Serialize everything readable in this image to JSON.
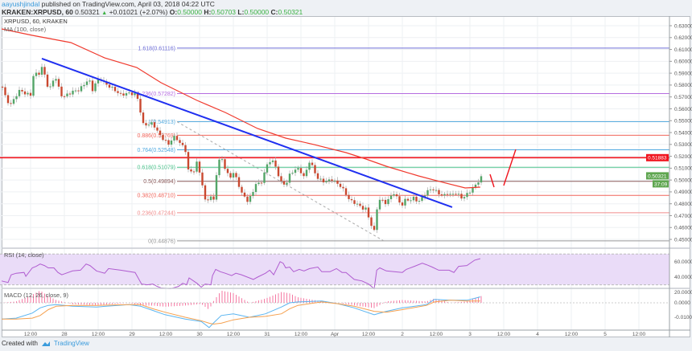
{
  "header": {
    "author": "aayushjindal",
    "published": "published on TradingView.com, April 03, 2018 04:22 UTC",
    "symbol": "KRAKEN:XRPUSD, 60",
    "last": "0.50321",
    "change": "+0.01021 (+2.07%)",
    "open_label": "O:",
    "open": "0.50000",
    "high_label": "H:",
    "high": "0.50703",
    "low_label": "L:",
    "low": "0.50000",
    "close_label": "C:",
    "close": "0.50321"
  },
  "legend": {
    "series": "XRPUSD, 60, KRAKEN",
    "ma": "MA (100, close)",
    "rsi": "RSI (14, close)",
    "macd": "MACD (12, 26, close, 9)"
  },
  "footer": {
    "created_with": "Created with",
    "brand": "TradingView"
  },
  "colors": {
    "up": "#53a568",
    "down": "#c9482f",
    "ma": "#f03a2e",
    "trend": "#1f2ff0",
    "resistance": "#f0141e",
    "rsi": "#b05cd0",
    "rsi_band": "#eadcf8",
    "macd": "#5ab4f0",
    "signal": "#f5a04e",
    "hist": "#f47aa3",
    "last_tag": "#5fa650"
  },
  "chart_data": {
    "type": "candlestick",
    "time_unit": "hours since Mar 28 00:00",
    "price_axis": {
      "ticks": [
        "0.63000",
        "0.62000",
        "0.61000",
        "0.60000",
        "0.59000",
        "0.58000",
        "0.57000",
        "0.56000",
        "0.55000",
        "0.54000",
        "0.53000",
        "0.52000",
        "0.51000",
        "0.50000",
        "0.49000",
        "0.48000",
        "0.47000",
        "0.46000",
        "0.45000"
      ],
      "range": [
        0.445,
        0.64
      ]
    },
    "time_axis": [
      {
        "t": -12,
        "label": "12:00"
      },
      {
        "t": 0,
        "label": "28"
      },
      {
        "t": 12,
        "label": "12:00"
      },
      {
        "t": 24,
        "label": "29"
      },
      {
        "t": 36,
        "label": "12:00"
      },
      {
        "t": 48,
        "label": "30"
      },
      {
        "t": 60,
        "label": "12:00"
      },
      {
        "t": 72,
        "label": "31"
      },
      {
        "t": 84,
        "label": "12:00"
      },
      {
        "t": 96,
        "label": "Apr"
      },
      {
        "t": 108,
        "label": "12:00"
      },
      {
        "t": 120,
        "label": "2"
      },
      {
        "t": 132,
        "label": "12:00"
      },
      {
        "t": 144,
        "label": "3"
      },
      {
        "t": 156,
        "label": "12:00"
      },
      {
        "t": 168,
        "label": "4"
      },
      {
        "t": 180,
        "label": "12:00"
      },
      {
        "t": 192,
        "label": "5"
      },
      {
        "t": 204,
        "label": "12:00"
      }
    ],
    "close_path": [
      [
        -22,
        0.5786
      ],
      [
        -20.6,
        0.5671
      ],
      [
        -18.9,
        0.5637
      ],
      [
        -17,
        0.5718
      ],
      [
        -15.7,
        0.5759
      ],
      [
        -13.7,
        0.5725
      ],
      [
        -12,
        0.5718
      ],
      [
        -10.9,
        0.5894
      ],
      [
        -9.1,
        0.5894
      ],
      [
        -7.7,
        0.5962
      ],
      [
        -6.3,
        0.5806
      ],
      [
        -5.1,
        0.5772
      ],
      [
        -4,
        0.584
      ],
      [
        -2.9,
        0.586
      ],
      [
        -1.4,
        0.5718
      ],
      [
        0,
        0.5705
      ],
      [
        1.4,
        0.5725
      ],
      [
        2.9,
        0.5745
      ],
      [
        5.1,
        0.5759
      ],
      [
        6.6,
        0.5793
      ],
      [
        8.6,
        0.5853
      ],
      [
        10,
        0.5759
      ],
      [
        11.4,
        0.5833
      ],
      [
        12.9,
        0.5853
      ],
      [
        14.3,
        0.5813
      ],
      [
        17.1,
        0.5772
      ],
      [
        20,
        0.5718
      ],
      [
        22.9,
        0.5732
      ],
      [
        25.7,
        0.5718
      ],
      [
        28,
        0.5468
      ],
      [
        30,
        0.5468
      ],
      [
        31.4,
        0.5481
      ],
      [
        32.9,
        0.5414
      ],
      [
        34.3,
        0.5366
      ],
      [
        37.1,
        0.5299
      ],
      [
        38.6,
        0.5366
      ],
      [
        40,
        0.5346
      ],
      [
        41.4,
        0.5299
      ],
      [
        42.9,
        0.5265
      ],
      [
        44,
        0.5082
      ],
      [
        45.7,
        0.5062
      ],
      [
        47.1,
        0.515
      ],
      [
        48.6,
        0.5014
      ],
      [
        50,
        0.4825
      ],
      [
        52,
        0.4859
      ],
      [
        53.1,
        0.4825
      ],
      [
        54.3,
        0.5129
      ],
      [
        55.7,
        0.5197
      ],
      [
        57.1,
        0.5096
      ],
      [
        58.6,
        0.5014
      ],
      [
        60,
        0.5062
      ],
      [
        61.4,
        0.4994
      ],
      [
        62.9,
        0.4893
      ],
      [
        64.9,
        0.4825
      ],
      [
        66.6,
        0.4872
      ],
      [
        68,
        0.4974
      ],
      [
        69.7,
        0.496
      ],
      [
        71.4,
        0.5096
      ],
      [
        72.9,
        0.5163
      ],
      [
        74.3,
        0.5157
      ],
      [
        75.7,
        0.5062
      ],
      [
        77.1,
        0.4974
      ],
      [
        78.6,
        0.496
      ],
      [
        80,
        0.5042
      ],
      [
        81.4,
        0.5082
      ],
      [
        83.4,
        0.5096
      ],
      [
        85.1,
        0.5021
      ],
      [
        87.1,
        0.5163
      ],
      [
        88.6,
        0.5082
      ],
      [
        90,
        0.5014
      ],
      [
        91.4,
        0.4994
      ],
      [
        92.9,
        0.4987
      ],
      [
        94.9,
        0.5008
      ],
      [
        96.6,
        0.4974
      ],
      [
        97.7,
        0.496
      ],
      [
        99.4,
        0.4906
      ],
      [
        101.4,
        0.4825
      ],
      [
        102.9,
        0.4812
      ],
      [
        104.3,
        0.4791
      ],
      [
        105.7,
        0.4764
      ],
      [
        107.1,
        0.4757
      ],
      [
        108.6,
        0.4642
      ],
      [
        110,
        0.4568
      ],
      [
        111.4,
        0.4839
      ],
      [
        112.9,
        0.4825
      ],
      [
        114.3,
        0.4805
      ],
      [
        115.7,
        0.4859
      ],
      [
        117.1,
        0.4893
      ],
      [
        118.6,
        0.4825
      ],
      [
        120,
        0.4791
      ],
      [
        121.4,
        0.4845
      ],
      [
        122.9,
        0.4825
      ],
      [
        124.3,
        0.4859
      ],
      [
        125.7,
        0.4805
      ],
      [
        127.1,
        0.4859
      ],
      [
        128.6,
        0.4893
      ],
      [
        130,
        0.4927
      ],
      [
        131.4,
        0.4913
      ],
      [
        132.9,
        0.4893
      ],
      [
        134.3,
        0.4859
      ],
      [
        135.7,
        0.4893
      ],
      [
        137.1,
        0.4872
      ],
      [
        138.6,
        0.4893
      ],
      [
        140,
        0.4872
      ],
      [
        141.4,
        0.4845
      ],
      [
        142.9,
        0.4879
      ],
      [
        144.3,
        0.4913
      ],
      [
        145.7,
        0.4947
      ],
      [
        147.1,
        0.4994
      ],
      [
        148,
        0.50321
      ]
    ],
    "ma100": [
      [
        -22.3,
        0.6273
      ],
      [
        -11.4,
        0.6219
      ],
      [
        2.3,
        0.6158
      ],
      [
        14.3,
        0.6029
      ],
      [
        25.7,
        0.5948
      ],
      [
        34.3,
        0.582
      ],
      [
        47.1,
        0.5671
      ],
      [
        57.1,
        0.5569
      ],
      [
        68.6,
        0.5434
      ],
      [
        78.6,
        0.5353
      ],
      [
        88.6,
        0.5299
      ],
      [
        100,
        0.5231
      ],
      [
        107.1,
        0.5177
      ],
      [
        114.3,
        0.5116
      ],
      [
        125.7,
        0.5035
      ],
      [
        134.3,
        0.4981
      ],
      [
        142.3,
        0.4933
      ],
      [
        147.7,
        0.494
      ]
    ],
    "trendline": [
      [
        -8,
        0.6023
      ],
      [
        137.7,
        0.4771
      ]
    ],
    "resistance": {
      "price": 0.51883,
      "label": "0.51883"
    },
    "last_price_tag": {
      "label": "0.50321",
      "countdown": "37:09"
    },
    "fib": {
      "start": 40,
      "dashed_from": [
        40,
        0.54913
      ],
      "dashed_to": [
        113.4,
        0.44876
      ],
      "levels": [
        {
          "label": "1.618(0.61116)",
          "price": 0.61116,
          "color": "#6f6fd8"
        },
        {
          "label": "1.236(0.57282)",
          "price": 0.57282,
          "color": "#b56ce0"
        },
        {
          "label": "1(0.54913)",
          "price": 0.54913,
          "color": "#5aaee0"
        },
        {
          "label": "0.886(0.53769)",
          "price": 0.53769,
          "color": "#f0645a"
        },
        {
          "label": "0.764(0.52548)",
          "price": 0.52548,
          "color": "#4fa8e0"
        },
        {
          "label": "0.618(0.51079)",
          "price": 0.51079,
          "color": "#4cc48c"
        },
        {
          "label": "0.5(0.49894)",
          "price": 0.49894,
          "color": "#8a5a5a"
        },
        {
          "label": "0.382(0.48710)",
          "price": 0.4871,
          "color": "#f0645a"
        },
        {
          "label": "0.236(0.47244)",
          "price": 0.47244,
          "color": "#f08c8c"
        },
        {
          "label": "0(0.44876)",
          "price": 0.44876,
          "color": "#999999"
        }
      ]
    },
    "rsi": {
      "axis": [
        "60.0000",
        "40.0000",
        "20.0000"
      ],
      "band": [
        30,
        70
      ],
      "values": [
        [
          -22.3,
          35
        ],
        [
          -20,
          33
        ],
        [
          -18.9,
          43
        ],
        [
          -17.1,
          45
        ],
        [
          -14.3,
          46
        ],
        [
          -13.7,
          41
        ],
        [
          -11.4,
          52
        ],
        [
          -10,
          54
        ],
        [
          -8.6,
          57
        ],
        [
          -7.1,
          55
        ],
        [
          -5.7,
          52
        ],
        [
          -3.7,
          52
        ],
        [
          -2.3,
          46
        ],
        [
          -0.9,
          43
        ],
        [
          0.6,
          45
        ],
        [
          2.9,
          48
        ],
        [
          5.7,
          49
        ],
        [
          7.7,
          57
        ],
        [
          9.1,
          55
        ],
        [
          11.4,
          48
        ],
        [
          14.3,
          45
        ],
        [
          15.7,
          51
        ],
        [
          20,
          49
        ],
        [
          25.1,
          46
        ],
        [
          27.4,
          31
        ],
        [
          29.4,
          30
        ],
        [
          31.4,
          31
        ],
        [
          32.9,
          28
        ],
        [
          34.3,
          26
        ],
        [
          37.7,
          25
        ],
        [
          40.6,
          28
        ],
        [
          42,
          32
        ],
        [
          43.4,
          30
        ],
        [
          44.3,
          39
        ],
        [
          47.1,
          32
        ],
        [
          48.6,
          27
        ],
        [
          50,
          31
        ],
        [
          52,
          30
        ],
        [
          52.6,
          42
        ],
        [
          53.7,
          50
        ],
        [
          55.4,
          47
        ],
        [
          57.1,
          45
        ],
        [
          59.4,
          42
        ],
        [
          60.9,
          45
        ],
        [
          62.9,
          43
        ],
        [
          65.7,
          39
        ],
        [
          67.1,
          37
        ],
        [
          68.6,
          40
        ],
        [
          71.4,
          45
        ],
        [
          72.9,
          49
        ],
        [
          74.3,
          43
        ],
        [
          76.6,
          60
        ],
        [
          77.7,
          58
        ],
        [
          78.6,
          52
        ],
        [
          80,
          53
        ],
        [
          81.4,
          47
        ],
        [
          83.4,
          50
        ],
        [
          85.1,
          48
        ],
        [
          87.1,
          51
        ],
        [
          90,
          53
        ],
        [
          91.4,
          47
        ],
        [
          94.3,
          47
        ],
        [
          96.6,
          51
        ],
        [
          98.6,
          46
        ],
        [
          100,
          46
        ],
        [
          102.9,
          37
        ],
        [
          105.7,
          35
        ],
        [
          108,
          31
        ],
        [
          110,
          25
        ],
        [
          110.9,
          49
        ],
        [
          112,
          52
        ],
        [
          114.3,
          48
        ],
        [
          117.1,
          47
        ],
        [
          120,
          46
        ],
        [
          121.4,
          50
        ],
        [
          124.3,
          54
        ],
        [
          127.1,
          58
        ],
        [
          128.6,
          56
        ],
        [
          130.6,
          53
        ],
        [
          132.9,
          49
        ],
        [
          136.6,
          49
        ],
        [
          138.3,
          46
        ],
        [
          140,
          54
        ],
        [
          142.9,
          55
        ],
        [
          145.7,
          62
        ],
        [
          147.7,
          64
        ]
      ]
    },
    "macd": {
      "axis": [
        "0.0000",
        "-0.0100",
        "-0.0200"
      ],
      "values": [
        [
          -22.3,
          -0.0112,
          -0.0112
        ],
        [
          -17.1,
          -0.0106,
          -0.0112
        ],
        [
          -11.4,
          -0.0071,
          -0.0106
        ],
        [
          -8.6,
          -0.0035,
          -0.0088
        ],
        [
          -5.7,
          -0.0018,
          -0.0047
        ],
        [
          -2.9,
          -0.0012,
          -0.0024
        ],
        [
          2.9,
          -0.0024,
          -0.0018
        ],
        [
          11.4,
          -0.0029,
          -0.0018
        ],
        [
          22.9,
          -0.0012,
          -0.0012
        ],
        [
          27.1,
          -0.0024,
          -0.0012
        ],
        [
          31.4,
          -0.0053,
          -0.0041
        ],
        [
          35.7,
          -0.0082,
          -0.0065
        ],
        [
          42.9,
          -0.0112,
          -0.01
        ],
        [
          48.6,
          -0.0129,
          -0.0124
        ],
        [
          51.4,
          -0.0171,
          -0.0141
        ],
        [
          52.9,
          -0.0141,
          -0.0147
        ],
        [
          55.7,
          -0.0088,
          -0.0141
        ],
        [
          60,
          -0.0076,
          -0.0118
        ],
        [
          65.7,
          -0.01,
          -0.01
        ],
        [
          71.4,
          -0.0076,
          -0.0094
        ],
        [
          77.1,
          -0.0029,
          -0.0076
        ],
        [
          80,
          0,
          -0.0041
        ],
        [
          82.9,
          0.0006,
          -0.0018
        ],
        [
          91.4,
          0.0012,
          0.0006
        ],
        [
          97.1,
          -0.0006,
          -0.0006
        ],
        [
          102.9,
          -0.0035,
          -0.0024
        ],
        [
          110,
          -0.0082,
          -0.0059
        ],
        [
          114.3,
          -0.0059,
          -0.0065
        ],
        [
          120,
          -0.0035,
          -0.0047
        ],
        [
          128.6,
          -0.0012,
          -0.0018
        ],
        [
          131.4,
          0.0024,
          0.0006
        ],
        [
          137.1,
          0.0018,
          0.0018
        ],
        [
          142.9,
          0.0018,
          0.0012
        ],
        [
          147.7,
          0.0041,
          0.0012
        ]
      ]
    }
  }
}
